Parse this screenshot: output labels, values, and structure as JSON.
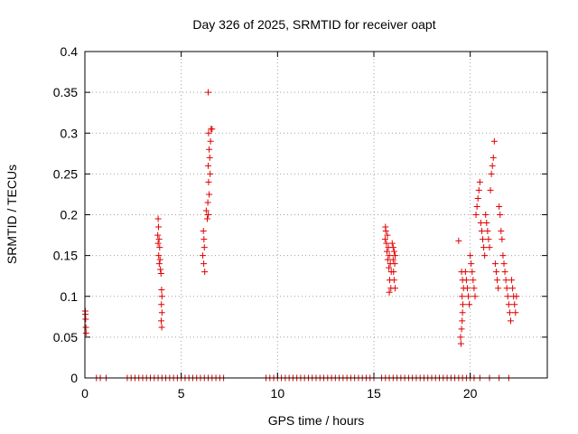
{
  "chart_data": {
    "type": "scatter",
    "title": "Day 326 of 2025, SRMTID for receiver oapt",
    "xlabel": "GPS time / hours",
    "ylabel": "SRMTID / TECUs",
    "xlim": [
      0,
      24
    ],
    "ylim": [
      0,
      0.4
    ],
    "xticks": [
      0,
      5,
      10,
      15,
      20
    ],
    "xtick_labels": [
      "0",
      "5",
      "10",
      "15",
      "20"
    ],
    "yticks": [
      0,
      0.05,
      0.1,
      0.15,
      0.2,
      0.25,
      0.3,
      0.35,
      0.4
    ],
    "ytick_labels": [
      "0",
      "0.05",
      "0.1",
      "0.15",
      "0.2",
      "0.25",
      "0.3",
      "0.35",
      "0.4"
    ],
    "grid": true,
    "marker": "+",
    "series": [
      {
        "name": "SRMTID",
        "color": "#e00000",
        "points": [
          [
            0.02,
            0.082
          ],
          [
            0.03,
            0.078
          ],
          [
            0.04,
            0.072
          ],
          [
            0.05,
            0.062
          ],
          [
            0.06,
            0.055
          ],
          [
            3.8,
            0.195
          ],
          [
            3.82,
            0.185
          ],
          [
            3.78,
            0.175
          ],
          [
            3.85,
            0.17
          ],
          [
            3.8,
            0.165
          ],
          [
            3.88,
            0.16
          ],
          [
            3.83,
            0.15
          ],
          [
            3.9,
            0.145
          ],
          [
            3.86,
            0.14
          ],
          [
            3.92,
            0.133
          ],
          [
            3.95,
            0.128
          ],
          [
            3.98,
            0.108
          ],
          [
            4.0,
            0.1
          ],
          [
            3.97,
            0.09
          ],
          [
            4.0,
            0.08
          ],
          [
            3.96,
            0.07
          ],
          [
            3.99,
            0.062
          ],
          [
            6.15,
            0.18
          ],
          [
            6.18,
            0.17
          ],
          [
            6.2,
            0.16
          ],
          [
            6.12,
            0.15
          ],
          [
            6.17,
            0.14
          ],
          [
            6.22,
            0.13
          ],
          [
            6.3,
            0.205
          ],
          [
            6.35,
            0.195
          ],
          [
            6.4,
            0.2
          ],
          [
            6.38,
            0.215
          ],
          [
            6.45,
            0.225
          ],
          [
            6.42,
            0.24
          ],
          [
            6.5,
            0.25
          ],
          [
            6.4,
            0.26
          ],
          [
            6.48,
            0.27
          ],
          [
            6.45,
            0.28
          ],
          [
            6.52,
            0.29
          ],
          [
            6.42,
            0.3
          ],
          [
            6.55,
            0.305
          ],
          [
            6.6,
            0.305
          ],
          [
            6.4,
            0.35
          ],
          [
            15.6,
            0.185
          ],
          [
            15.62,
            0.18
          ],
          [
            15.58,
            0.17
          ],
          [
            15.65,
            0.165
          ],
          [
            15.7,
            0.175
          ],
          [
            15.75,
            0.16
          ],
          [
            15.68,
            0.155
          ],
          [
            15.8,
            0.15
          ],
          [
            15.72,
            0.145
          ],
          [
            15.85,
            0.14
          ],
          [
            15.78,
            0.135
          ],
          [
            15.9,
            0.13
          ],
          [
            15.82,
            0.12
          ],
          [
            15.88,
            0.11
          ],
          [
            15.8,
            0.105
          ],
          [
            15.95,
            0.165
          ],
          [
            16.0,
            0.16
          ],
          [
            16.05,
            0.155
          ],
          [
            16.1,
            0.15
          ],
          [
            16.0,
            0.145
          ],
          [
            16.08,
            0.14
          ],
          [
            16.02,
            0.13
          ],
          [
            16.05,
            0.12
          ],
          [
            16.1,
            0.11
          ],
          [
            19.4,
            0.168
          ],
          [
            19.55,
            0.13
          ],
          [
            19.6,
            0.12
          ],
          [
            19.65,
            0.11
          ],
          [
            19.58,
            0.1
          ],
          [
            19.62,
            0.09
          ],
          [
            19.6,
            0.08
          ],
          [
            19.58,
            0.07
          ],
          [
            19.55,
            0.06
          ],
          [
            19.5,
            0.05
          ],
          [
            19.52,
            0.042
          ],
          [
            19.75,
            0.13
          ],
          [
            19.8,
            0.12
          ],
          [
            19.85,
            0.11
          ],
          [
            19.9,
            0.1
          ],
          [
            19.95,
            0.09
          ],
          [
            20.0,
            0.15
          ],
          [
            20.05,
            0.14
          ],
          [
            20.1,
            0.13
          ],
          [
            20.15,
            0.12
          ],
          [
            20.2,
            0.11
          ],
          [
            20.25,
            0.1
          ],
          [
            20.3,
            0.2
          ],
          [
            20.35,
            0.21
          ],
          [
            20.4,
            0.22
          ],
          [
            20.45,
            0.23
          ],
          [
            20.5,
            0.24
          ],
          [
            20.55,
            0.19
          ],
          [
            20.6,
            0.18
          ],
          [
            20.65,
            0.17
          ],
          [
            20.7,
            0.16
          ],
          [
            20.75,
            0.15
          ],
          [
            20.8,
            0.2
          ],
          [
            20.85,
            0.19
          ],
          [
            20.9,
            0.18
          ],
          [
            20.95,
            0.17
          ],
          [
            21.0,
            0.16
          ],
          [
            21.05,
            0.23
          ],
          [
            21.1,
            0.25
          ],
          [
            21.15,
            0.26
          ],
          [
            21.2,
            0.27
          ],
          [
            21.25,
            0.29
          ],
          [
            21.3,
            0.14
          ],
          [
            21.35,
            0.13
          ],
          [
            21.4,
            0.12
          ],
          [
            21.45,
            0.11
          ],
          [
            21.5,
            0.21
          ],
          [
            21.55,
            0.2
          ],
          [
            21.6,
            0.18
          ],
          [
            21.65,
            0.17
          ],
          [
            21.7,
            0.15
          ],
          [
            21.75,
            0.14
          ],
          [
            21.8,
            0.13
          ],
          [
            21.85,
            0.12
          ],
          [
            21.9,
            0.11
          ],
          [
            21.95,
            0.1
          ],
          [
            22.0,
            0.09
          ],
          [
            22.05,
            0.08
          ],
          [
            22.1,
            0.07
          ],
          [
            22.15,
            0.12
          ],
          [
            22.2,
            0.11
          ],
          [
            22.25,
            0.1
          ],
          [
            22.3,
            0.09
          ],
          [
            22.35,
            0.08
          ],
          [
            22.4,
            0.1
          ]
        ],
        "zero_points_x": [
          0.6,
          0.8,
          1.1,
          2.2,
          2.4,
          2.6,
          2.8,
          3.0,
          3.2,
          3.4,
          3.6,
          3.8,
          4.0,
          4.2,
          4.4,
          4.6,
          4.8,
          5.0,
          5.2,
          5.4,
          5.6,
          5.8,
          6.0,
          6.2,
          6.4,
          6.6,
          6.8,
          7.0,
          7.2,
          9.4,
          9.6,
          9.8,
          10.0,
          10.2,
          10.4,
          10.6,
          10.8,
          11.0,
          11.2,
          11.4,
          11.6,
          11.8,
          12.0,
          12.2,
          12.4,
          12.6,
          12.8,
          13.0,
          13.2,
          13.4,
          13.6,
          13.8,
          14.0,
          14.2,
          14.4,
          14.6,
          14.8,
          15.0,
          15.4,
          15.6,
          15.8,
          16.0,
          16.2,
          16.4,
          16.6,
          16.8,
          17.0,
          17.2,
          17.4,
          17.6,
          17.8,
          18.0,
          18.2,
          18.4,
          18.6,
          18.8,
          19.0,
          19.2,
          19.4,
          19.6,
          19.8,
          20.0,
          20.2,
          20.5,
          21.0,
          21.5,
          22.0
        ]
      }
    ]
  }
}
